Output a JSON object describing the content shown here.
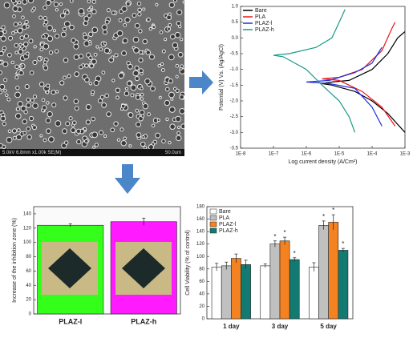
{
  "image": {
    "info": "5.0kV 6.8mm x1.00k SE(M)",
    "scale": "50.0um"
  },
  "chart_data": [
    {
      "type": "line",
      "log_x": true,
      "xlabel": "Log current density (A/Cm²)",
      "ylabel": "Potential (V) Vs. (Ag/AgCl)",
      "xlim": [
        1e-08,
        0.001
      ],
      "xticks": [
        {
          "value": 1e-08,
          "label": "1E-8"
        },
        {
          "value": 1e-07,
          "label": "1E-7"
        },
        {
          "value": 1e-06,
          "label": "1E-6"
        },
        {
          "value": 1e-05,
          "label": "1E-5"
        },
        {
          "value": 0.0001,
          "label": "1E-4"
        },
        {
          "value": 0.001,
          "label": "1E-3"
        }
      ],
      "ylim": [
        -3.5,
        1.0
      ],
      "yticks": [
        {
          "value": 1.0,
          "label": "1.0"
        },
        0.5,
        {
          "value": 0.0,
          "label": "0.0"
        },
        -0.5,
        {
          "value": -1.0,
          "label": "-1.0"
        },
        -1.5,
        {
          "value": -2.0,
          "label": "-2.0"
        },
        -2.5,
        {
          "value": -3.0,
          "label": "-3.0"
        },
        -3.5
      ],
      "legend": "top-left",
      "series": [
        {
          "name": "Bare",
          "color": "#000000",
          "x": [
            0.001,
            0.0003,
            0.0001,
            3e-05,
            6e-06,
            3e-06,
            6e-06,
            2e-05,
            0.0001,
            0.0003,
            0.0006,
            0.001
          ],
          "values": [
            -3.0,
            -2.4,
            -2.0,
            -1.7,
            -1.5,
            -1.45,
            -1.4,
            -1.35,
            -1.0,
            -0.5,
            0.0,
            0.2
          ]
        },
        {
          "name": "PLA",
          "color": "#e8141c",
          "x": [
            0.0005,
            0.0002,
            5e-05,
            1e-05,
            3e-06,
            1e-05,
            5e-05,
            0.0002,
            0.0004,
            0.0005
          ],
          "values": [
            -2.8,
            -2.2,
            -1.7,
            -1.35,
            -1.3,
            -1.25,
            -1.0,
            -0.4,
            0.3,
            0.5
          ]
        },
        {
          "name": "PLAZ-l",
          "color": "#1f2fe0",
          "x": [
            0.0002,
            0.0001,
            3e-05,
            5e-06,
            1e-06,
            5e-06,
            3e-05,
            0.0001,
            0.00015,
            0.0002
          ],
          "values": [
            -2.8,
            -2.2,
            -1.6,
            -1.45,
            -1.4,
            -1.35,
            -1.1,
            -0.8,
            -0.5,
            -0.3
          ]
        },
        {
          "name": "PLAZ-h",
          "color": "#1a9a8a",
          "x": [
            3e-05,
            2e-05,
            1e-05,
            3e-06,
            1e-06,
            2e-07,
            1e-07,
            3e-07,
            2e-06,
            6e-06,
            1e-05,
            1.5e-05
          ],
          "values": [
            -3.0,
            -2.5,
            -2.0,
            -1.5,
            -1.0,
            -0.6,
            -0.55,
            -0.5,
            -0.3,
            0.0,
            0.5,
            0.9
          ]
        }
      ]
    },
    {
      "type": "bar",
      "ylabel": "Increase of the inhibition zone (%)",
      "categories": [
        "PLAZ-l",
        "PLAZ-h"
      ],
      "values": [
        124,
        129
      ],
      "errors": [
        2,
        5
      ],
      "colors": [
        "#33ff1a",
        "#ff1aff"
      ],
      "ylim": [
        0,
        150
      ],
      "yticks": [
        0,
        20,
        40,
        60,
        80,
        100,
        120,
        140
      ]
    },
    {
      "type": "bar",
      "ylabel": "Cell Viability (% of control)",
      "categories": [
        "1 day",
        "3 day",
        "5 day"
      ],
      "legend": "top-left",
      "ylim": [
        0,
        180
      ],
      "yticks": [
        0,
        20,
        40,
        60,
        80,
        100,
        120,
        140,
        160,
        180
      ],
      "series": [
        {
          "name": "Bare",
          "color": "#ffffff",
          "values": [
            83,
            85,
            83
          ],
          "errors": [
            6,
            3,
            7
          ],
          "marks": [
            null,
            null,
            null
          ]
        },
        {
          "name": "PLA",
          "color": "#c0c0c0",
          "values": [
            85,
            120,
            150
          ],
          "errors": [
            6,
            5,
            7
          ],
          "marks": [
            null,
            "*",
            "*"
          ]
        },
        {
          "name": "PLAZ-l",
          "color": "#f58220",
          "values": [
            97,
            125,
            155
          ],
          "errors": [
            7,
            6,
            12
          ],
          "marks": [
            null,
            "*",
            "*"
          ]
        },
        {
          "name": "PLAZ-h",
          "color": "#137a72",
          "values": [
            87,
            95,
            110
          ],
          "errors": [
            7,
            3,
            3
          ],
          "marks": [
            null,
            "*",
            "*"
          ]
        }
      ]
    }
  ]
}
